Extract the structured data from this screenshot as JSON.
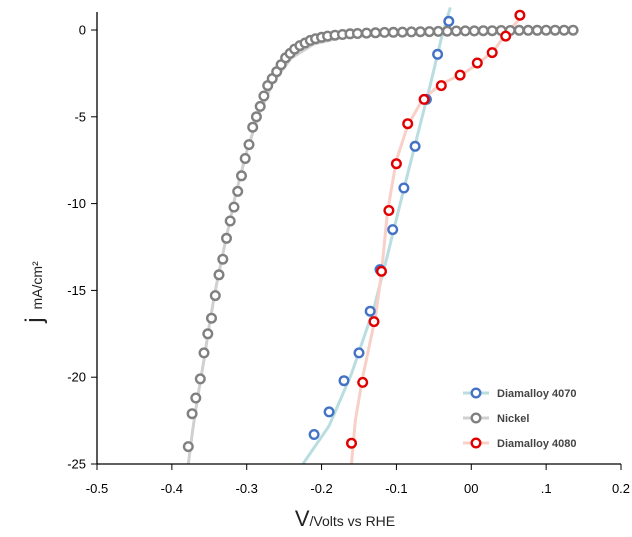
{
  "chart_data": {
    "type": "scatter",
    "xlabel": {
      "main": "V",
      "sub": "/Volts vs RHE"
    },
    "ylabel": {
      "main": "j",
      "sub": " mA/cm²"
    },
    "xlim": [
      -0.5,
      0.2
    ],
    "ylim": [
      -25,
      0
    ],
    "x_ticks": [
      -0.5,
      -0.4,
      -0.3,
      -0.2,
      -0.1,
      0,
      0.1,
      0.2
    ],
    "x_tick_labels": [
      "-0.5",
      "-0.4",
      "-0.3",
      "-0.2",
      "-0.1",
      "00",
      ".1",
      "0.2"
    ],
    "y_ticks": [
      0,
      -5,
      -10,
      -15,
      -20,
      -25
    ],
    "y_tick_labels": [
      "0",
      "-5",
      "-10",
      "-15",
      "-20",
      "-25"
    ],
    "legend_position": "bottom-right",
    "series": [
      {
        "name": "Diamalloy 4070",
        "color": "#4472C4",
        "line_color": "#b9dde0",
        "fill": "#ffffff",
        "line": [
          [
            -0.225,
            -25
          ],
          [
            -0.19,
            -22.8
          ],
          [
            -0.16,
            -19.8
          ],
          [
            -0.13,
            -16
          ],
          [
            -0.115,
            -13.5
          ],
          [
            -0.095,
            -10
          ],
          [
            -0.075,
            -6.6
          ],
          [
            -0.055,
            -3.2
          ],
          [
            -0.04,
            -0.5
          ],
          [
            -0.028,
            1.3
          ]
        ],
        "x": [
          -0.21,
          -0.19,
          -0.17,
          -0.15,
          -0.135,
          -0.122,
          -0.105,
          -0.09,
          -0.075,
          -0.06,
          -0.045,
          -0.03
        ],
        "y": [
          -23.3,
          -22.0,
          -20.2,
          -18.6,
          -16.2,
          -13.8,
          -11.5,
          -9.1,
          -6.7,
          -4.0,
          -1.4,
          0.5
        ]
      },
      {
        "name": "Nickel",
        "color": "#808080",
        "line_color": "#d0d0d0",
        "fill": "#ffffff",
        "line": [
          [
            -0.378,
            -25
          ],
          [
            -0.372,
            -23
          ],
          [
            -0.365,
            -21
          ],
          [
            -0.357,
            -19
          ],
          [
            -0.35,
            -17
          ],
          [
            -0.342,
            -15
          ],
          [
            -0.33,
            -12.5
          ],
          [
            -0.315,
            -9.5
          ],
          [
            -0.3,
            -7
          ],
          [
            -0.285,
            -5
          ],
          [
            -0.265,
            -3
          ],
          [
            -0.24,
            -1.6
          ],
          [
            -0.21,
            -0.8
          ],
          [
            -0.17,
            -0.4
          ],
          [
            -0.1,
            -0.25
          ],
          [
            0.0,
            -0.1
          ],
          [
            0.14,
            -0.05
          ]
        ],
        "x": [
          -0.378,
          -0.373,
          -0.368,
          -0.362,
          -0.357,
          -0.352,
          -0.347,
          -0.342,
          -0.337,
          -0.332,
          -0.327,
          -0.322,
          -0.317,
          -0.312,
          -0.307,
          -0.302,
          -0.297,
          -0.292,
          -0.287,
          -0.282,
          -0.277,
          -0.272,
          -0.266,
          -0.26,
          -0.254,
          -0.248,
          -0.242,
          -0.236,
          -0.229,
          -0.222,
          -0.215,
          -0.208,
          -0.2,
          -0.192,
          -0.182,
          -0.172,
          -0.162,
          -0.152,
          -0.14,
          -0.128,
          -0.116,
          -0.104,
          -0.092,
          -0.08,
          -0.068,
          -0.056,
          -0.044,
          -0.032,
          -0.02,
          -0.008,
          0.004,
          0.016,
          0.028,
          0.04,
          0.052,
          0.064,
          0.076,
          0.088,
          0.1,
          0.112,
          0.124,
          0.136
        ],
        "y": [
          -24.0,
          -22.1,
          -21.2,
          -20.1,
          -18.6,
          -17.5,
          -16.6,
          -15.3,
          -14.1,
          -13.2,
          -12.0,
          -11.0,
          -10.2,
          -9.3,
          -8.4,
          -7.4,
          -6.6,
          -5.6,
          -5.0,
          -4.4,
          -3.8,
          -3.2,
          -2.8,
          -2.4,
          -2.0,
          -1.6,
          -1.35,
          -1.1,
          -0.9,
          -0.75,
          -0.6,
          -0.5,
          -0.42,
          -0.35,
          -0.3,
          -0.26,
          -0.22,
          -0.2,
          -0.18,
          -0.16,
          -0.14,
          -0.13,
          -0.12,
          -0.11,
          -0.1,
          -0.09,
          -0.08,
          -0.07,
          -0.06,
          -0.05,
          -0.05,
          -0.04,
          -0.04,
          -0.03,
          -0.03,
          -0.02,
          -0.02,
          -0.02,
          -0.01,
          -0.01,
          -0.01,
          -0.01
        ]
      },
      {
        "name": "Diamalloy 4080",
        "color": "#E00000",
        "line_color": "#f8d0c8",
        "fill": "#ffffff",
        "line": [
          [
            -0.16,
            -25
          ],
          [
            -0.155,
            -22.5
          ],
          [
            -0.145,
            -20
          ],
          [
            -0.128,
            -16.5
          ],
          [
            -0.12,
            -14
          ],
          [
            -0.112,
            -10.5
          ],
          [
            -0.1,
            -7.5
          ],
          [
            -0.085,
            -5.5
          ],
          [
            -0.065,
            -4
          ],
          [
            -0.04,
            -3.1
          ],
          [
            -0.01,
            -2.5
          ],
          [
            0.01,
            -1.9
          ],
          [
            0.03,
            -1.2
          ],
          [
            0.045,
            -0.3
          ],
          [
            0.07,
            0.9
          ]
        ],
        "x": [
          -0.16,
          -0.145,
          -0.13,
          -0.12,
          -0.11,
          -0.1,
          -0.085,
          -0.063,
          -0.04,
          -0.015,
          0.008,
          0.028,
          0.046,
          0.065
        ],
        "y": [
          -23.8,
          -20.3,
          -16.8,
          -13.9,
          -10.4,
          -7.7,
          -5.4,
          -4.0,
          -3.2,
          -2.6,
          -1.9,
          -1.3,
          -0.35,
          0.85
        ]
      }
    ]
  }
}
